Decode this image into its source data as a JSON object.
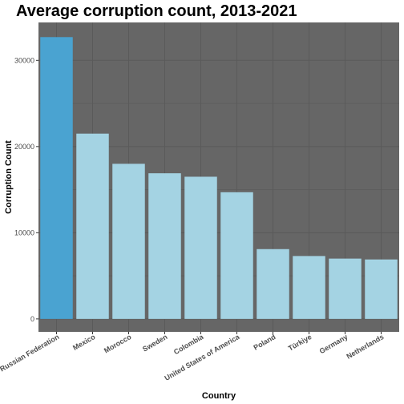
{
  "chart_data": {
    "type": "bar",
    "title": "Average corruption count, 2013-2021",
    "xlabel": "Country",
    "ylabel": "Corruption Count",
    "categories": [
      "Russian Federation",
      "Mexico",
      "Morocco",
      "Sweden",
      "Colombia",
      "United States of America",
      "Poland",
      "Türkiye",
      "Germany",
      "Netherlands"
    ],
    "values": [
      32700,
      21500,
      18000,
      16900,
      16500,
      14700,
      8100,
      7300,
      7000,
      6900
    ],
    "highlight": [
      true,
      false,
      false,
      false,
      false,
      false,
      false,
      false,
      false,
      false
    ],
    "yticks": [
      0,
      10000,
      20000,
      30000
    ],
    "ytick_labels": [
      "0",
      "10000",
      "20000",
      "30000"
    ],
    "ylim": [
      -1500,
      34400
    ],
    "grid": true,
    "legend": "none",
    "colors": {
      "panel": "#666666",
      "grid": "#5a5a5a",
      "bar": "#a4d3e3",
      "bar_highlight": "#4aa3d1"
    }
  }
}
